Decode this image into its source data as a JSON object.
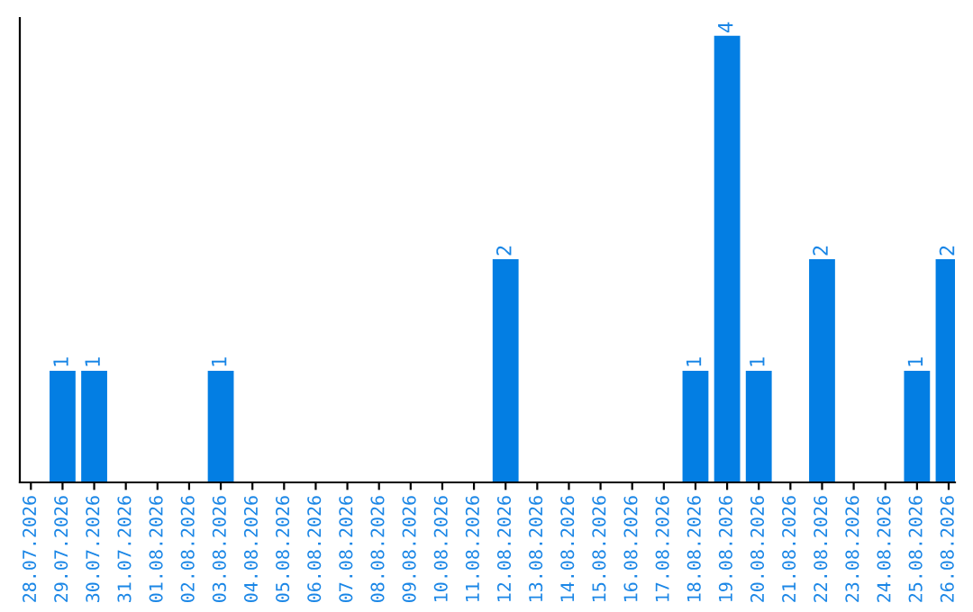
{
  "chart_data": {
    "type": "bar",
    "categories": [
      "28.07.2026",
      "29.07.2026",
      "30.07.2026",
      "31.07.2026",
      "01.08.2026",
      "02.08.2026",
      "03.08.2026",
      "04.08.2026",
      "05.08.2026",
      "06.08.2026",
      "07.08.2026",
      "08.08.2026",
      "09.08.2026",
      "10.08.2026",
      "11.08.2026",
      "12.08.2026",
      "13.08.2026",
      "14.08.2026",
      "15.08.2026",
      "16.08.2026",
      "17.08.2026",
      "18.08.2026",
      "19.08.2026",
      "20.08.2026",
      "21.08.2026",
      "22.08.2026",
      "23.08.2026",
      "24.08.2026",
      "25.08.2026",
      "26.08.2026"
    ],
    "values": [
      0,
      1,
      1,
      0,
      0,
      0,
      1,
      0,
      0,
      0,
      0,
      0,
      0,
      0,
      0,
      2,
      0,
      0,
      0,
      0,
      0,
      1,
      4,
      1,
      0,
      2,
      0,
      0,
      1,
      2
    ],
    "value_labels": [
      null,
      "1",
      "1",
      null,
      null,
      null,
      "1",
      null,
      null,
      null,
      null,
      null,
      null,
      null,
      null,
      "2",
      null,
      null,
      null,
      null,
      null,
      "1",
      "4",
      "1",
      null,
      "2",
      null,
      null,
      "1",
      "2"
    ],
    "color": "#037ee3",
    "tick_labels": "x",
    "grid": false,
    "legend": false
  }
}
